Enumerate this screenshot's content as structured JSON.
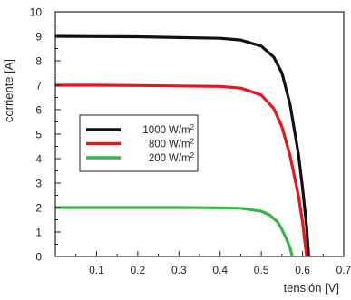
{
  "chart_data": {
    "type": "line",
    "xlabel": "tensión [V]",
    "ylabel": "corriente [A]",
    "xlim": [
      0,
      0.7
    ],
    "ylim": [
      0,
      10
    ],
    "x_ticks": [
      "0.1",
      "0.2",
      "0.3",
      "0.4",
      "0.5",
      "0.6",
      "0.7"
    ],
    "y_ticks": [
      "0",
      "1",
      "2",
      "3",
      "4",
      "5",
      "6",
      "7",
      "8",
      "9",
      "10"
    ],
    "grid": false,
    "legend_position": "center-left",
    "series": [
      {
        "label_number": "1000",
        "label_unit": "W/m",
        "label_sup": "2",
        "color": "#111111",
        "x": [
          0,
          0.1,
          0.2,
          0.3,
          0.4,
          0.45,
          0.5,
          0.53,
          0.55,
          0.57,
          0.59,
          0.6,
          0.61,
          0.615
        ],
        "y": [
          9.0,
          8.99,
          8.98,
          8.95,
          8.92,
          8.85,
          8.6,
          8.15,
          7.5,
          6.2,
          4.2,
          2.8,
          1.2,
          0
        ]
      },
      {
        "label_number": "800",
        "label_unit": "W/m",
        "label_sup": "2",
        "color": "#e8151f",
        "x": [
          0,
          0.1,
          0.2,
          0.3,
          0.4,
          0.45,
          0.5,
          0.53,
          0.55,
          0.57,
          0.59,
          0.6,
          0.61
        ],
        "y": [
          7.0,
          7.0,
          6.99,
          6.97,
          6.95,
          6.88,
          6.6,
          6.05,
          5.3,
          4.1,
          2.5,
          1.4,
          0
        ]
      },
      {
        "label_number": "200",
        "label_unit": "W/m",
        "label_sup": "2",
        "color": "#3cb34a",
        "x": [
          0,
          0.1,
          0.2,
          0.3,
          0.4,
          0.45,
          0.5,
          0.52,
          0.54,
          0.55,
          0.56,
          0.57,
          0.575
        ],
        "y": [
          2.0,
          2.0,
          2.0,
          2.0,
          1.99,
          1.97,
          1.85,
          1.7,
          1.4,
          1.1,
          0.75,
          0.35,
          0
        ]
      }
    ]
  }
}
